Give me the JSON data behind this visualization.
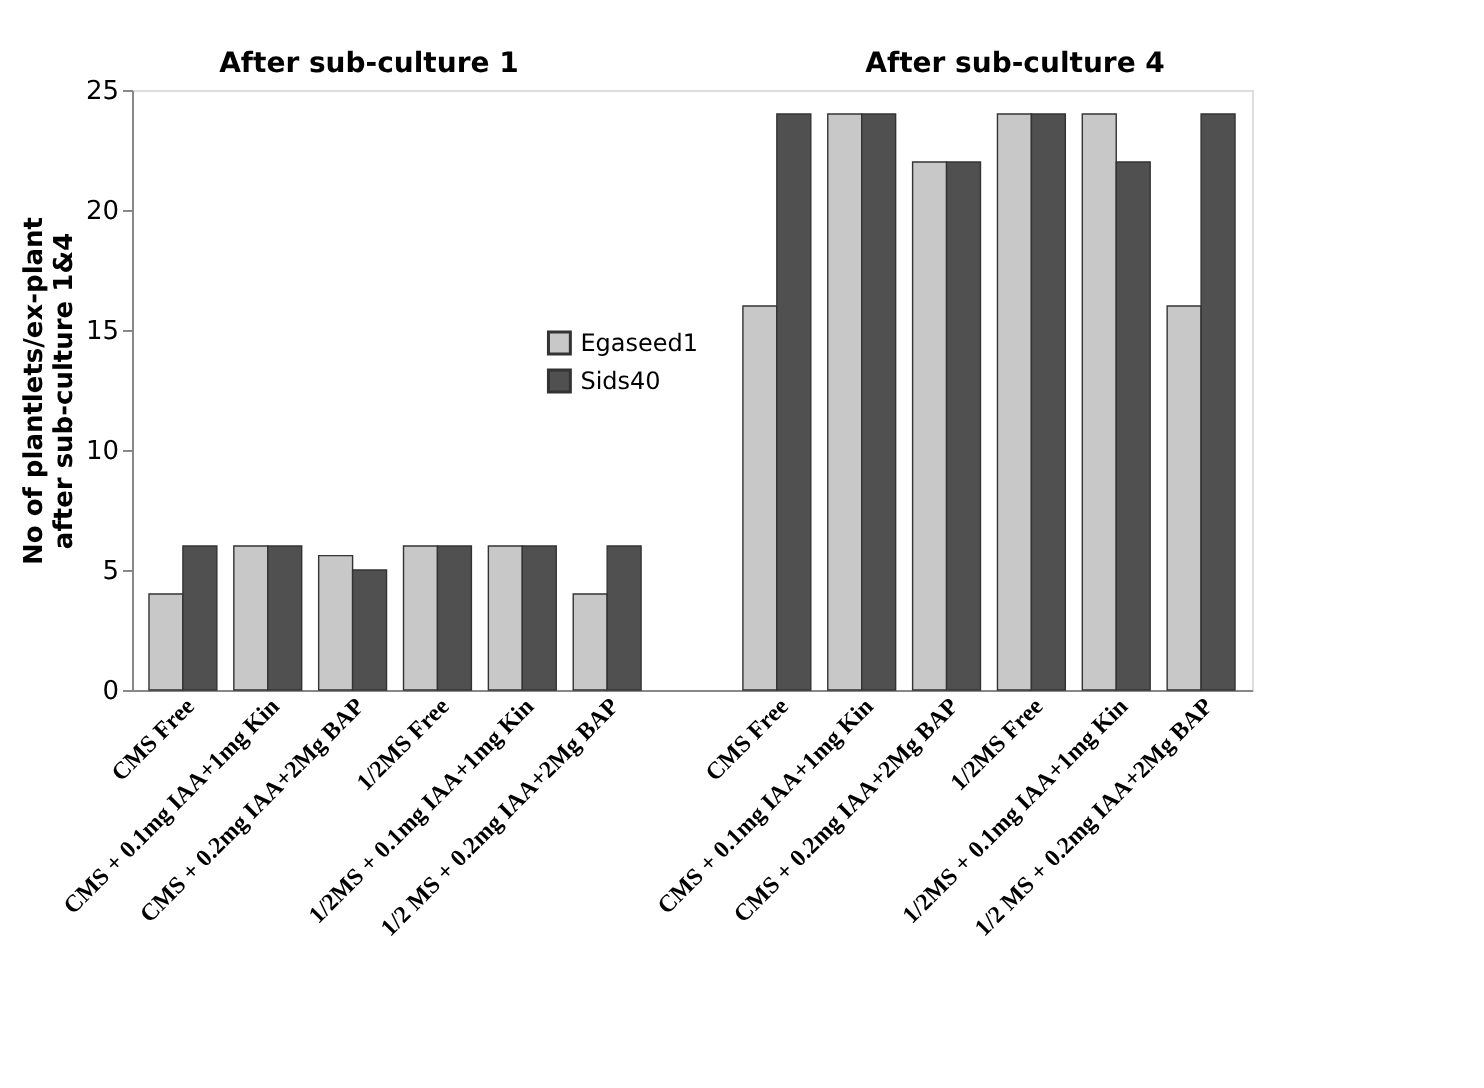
{
  "chart_data": {
    "type": "bar",
    "ylabel": "No of plantlets/ex-plant after sub-culture 1&4",
    "annotations": [
      "After sub-culture 1",
      "After sub-culture 4"
    ],
    "categories": [
      "CMS Free",
      "CMS + 0.1mg IAA+1mg Kin",
      "CMS + 0.2mg IAA+2Mg BAP",
      "1/2MS Free",
      "1/2MS + 0.1mg IAA+1mg Kin",
      "1/2 MS + 0.2mg IAA+2Mg BAP",
      null,
      "CMS Free",
      "CMS + 0.1mg IAA+1mg Kin",
      "CMS + 0.2mg IAA+2Mg BAP",
      "1/2MS Free",
      "1/2MS + 0.1mg IAA+1mg Kin",
      "1/2 MS + 0.2mg IAA+2Mg BAP"
    ],
    "series": [
      {
        "name": "Egaseed1",
        "color": "#c8c8c8",
        "values": [
          4,
          6,
          5.6,
          6,
          6,
          4,
          null,
          16,
          24,
          22,
          24,
          24,
          16
        ]
      },
      {
        "name": "Sids40",
        "color": "#505050",
        "values": [
          6,
          6,
          5,
          6,
          6,
          6,
          null,
          24,
          24,
          22,
          24,
          22,
          24
        ]
      }
    ],
    "ylim": [
      0,
      25
    ],
    "yticks": [
      0,
      5,
      10,
      15,
      20,
      25
    ],
    "grid": false,
    "legend": "top"
  }
}
